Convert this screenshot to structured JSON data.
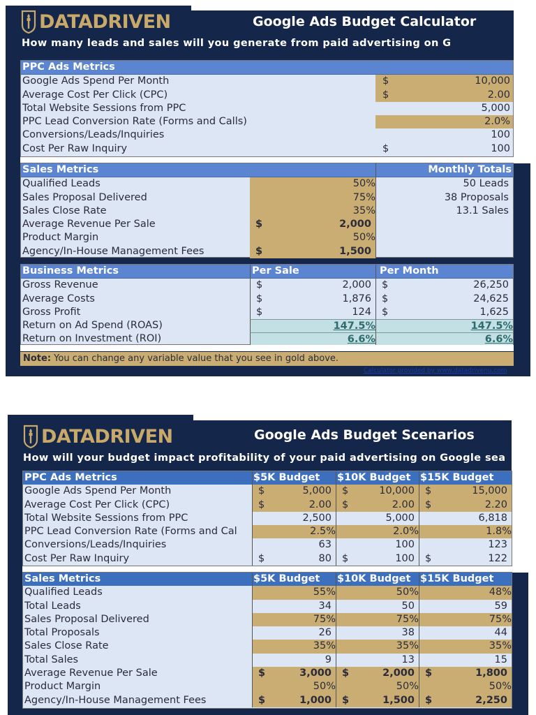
{
  "calculator": {
    "logo_text": "DATADRIVEN",
    "title": "Google Ads Budget Calculator",
    "subtitle": "How many leads and sales will you generate from paid advertising on G",
    "ppc": {
      "header": "PPC Ads Metrics",
      "rows": [
        {
          "label": "Google Ads Spend Per Month",
          "currency": "$",
          "value": "10,000",
          "editable": true
        },
        {
          "label": "Average Cost Per Click (CPC)",
          "currency": "$",
          "value": "2.00",
          "editable": true
        },
        {
          "label": "Total Website Sessions from PPC",
          "currency": "",
          "value": "5,000",
          "editable": false
        },
        {
          "label": "PPC Lead Conversion Rate (Forms and Calls)",
          "currency": "",
          "value": "2.0%",
          "editable": true
        },
        {
          "label": "Conversions/Leads/Inquiries",
          "currency": "",
          "value": "100",
          "editable": false
        },
        {
          "label": "Cost Per Raw Inquiry",
          "currency": "$",
          "value": "100",
          "editable": false
        }
      ]
    },
    "sales": {
      "header": "Sales Metrics",
      "totals_header": "Monthly Totals",
      "rows": [
        {
          "label": "Qualified Leads",
          "currency": "",
          "value": "50%",
          "total": "50 Leads"
        },
        {
          "label": "Sales Proposal Delivered",
          "currency": "",
          "value": "75%",
          "total": "38 Proposals"
        },
        {
          "label": "Sales Close Rate",
          "currency": "",
          "value": "35%",
          "total": "13.1 Sales"
        },
        {
          "label": "Average Revenue Per Sale",
          "currency": "$",
          "value": "2,000",
          "total": ""
        },
        {
          "label": "Product Margin",
          "currency": "",
          "value": "50%",
          "total": ""
        },
        {
          "label": "Agency/In-House Management Fees",
          "currency": "$",
          "value": "1,500",
          "total": ""
        }
      ]
    },
    "business": {
      "header": "Business Metrics",
      "col_per_sale": "Per Sale",
      "col_per_month": "Per Month",
      "rows": [
        {
          "label": "Gross Revenue",
          "sale_cur": "$",
          "sale": "2,000",
          "month_cur": "$",
          "month": "26,250"
        },
        {
          "label": "Average Costs",
          "sale_cur": "$",
          "sale": "1,876",
          "month_cur": "$",
          "month": "24,625"
        },
        {
          "label": "Gross Profit",
          "sale_cur": "$",
          "sale": "124",
          "month_cur": "$",
          "month": "1,625"
        },
        {
          "label": "Return on Ad Spend (ROAS)",
          "sale_cur": "",
          "sale": "147.5%",
          "month_cur": "",
          "month": "147.5%"
        },
        {
          "label": "Return on Investment (ROI)",
          "sale_cur": "",
          "sale": "6.6%",
          "month_cur": "",
          "month": "6.6%"
        }
      ]
    },
    "note_label": "Note:",
    "note_text": " You can change any variable value that you see in gold above.",
    "credit": "Calculator provided by www.datadrivenu.com"
  },
  "scenarios": {
    "logo_text": "DATADRIVEN",
    "title": "Google Ads Budget Scenarios",
    "subtitle": "How will your budget impact profitability of your paid advertising on Google sea",
    "columns": [
      "$5K Budget",
      "$10K Budget",
      "$15K Budget"
    ],
    "ppc": {
      "header": "PPC Ads Metrics",
      "rows": [
        {
          "label": "Google Ads Spend Per Month",
          "cur": "$",
          "gold": true,
          "bold": false,
          "values": [
            "5,000",
            "10,000",
            "15,000"
          ]
        },
        {
          "label": "Average Cost Per Click (CPC)",
          "cur": "$",
          "gold": true,
          "bold": false,
          "values": [
            "2.00",
            "2.00",
            "2.20"
          ]
        },
        {
          "label": "Total Website Sessions from PPC",
          "cur": "",
          "gold": false,
          "bold": false,
          "values": [
            "2,500",
            "5,000",
            "6,818"
          ]
        },
        {
          "label": "PPC Lead Conversion Rate (Forms and Cal",
          "cur": "",
          "gold": true,
          "bold": false,
          "values": [
            "2.5%",
            "2.0%",
            "1.8%"
          ]
        },
        {
          "label": "Conversions/Leads/Inquiries",
          "cur": "",
          "gold": false,
          "bold": false,
          "values": [
            "63",
            "100",
            "123"
          ]
        },
        {
          "label": "Cost Per Raw Inquiry",
          "cur": "$",
          "gold": false,
          "bold": false,
          "values": [
            "80",
            "100",
            "122"
          ]
        }
      ]
    },
    "sales": {
      "header": "Sales Metrics",
      "rows": [
        {
          "label": "Qualified Leads",
          "cur": "",
          "gold": true,
          "bold": false,
          "values": [
            "55%",
            "50%",
            "48%"
          ]
        },
        {
          "label": "Total Leads",
          "cur": "",
          "gold": false,
          "bold": false,
          "values": [
            "34",
            "50",
            "59"
          ]
        },
        {
          "label": "Sales Proposal Delivered",
          "cur": "",
          "gold": true,
          "bold": false,
          "values": [
            "75%",
            "75%",
            "75%"
          ]
        },
        {
          "label": "Total Proposals",
          "cur": "",
          "gold": false,
          "bold": false,
          "values": [
            "26",
            "38",
            "44"
          ]
        },
        {
          "label": "Sales Close Rate",
          "cur": "",
          "gold": true,
          "bold": false,
          "values": [
            "35%",
            "35%",
            "35%"
          ]
        },
        {
          "label": "Total Sales",
          "cur": "",
          "gold": false,
          "bold": false,
          "values": [
            "9",
            "13",
            "15"
          ]
        },
        {
          "label": "Average Revenue Per Sale",
          "cur": "$",
          "gold": true,
          "bold": true,
          "values": [
            "3,000",
            "2,000",
            "1,800"
          ]
        },
        {
          "label": "Product Margin",
          "cur": "",
          "gold": true,
          "bold": false,
          "values": [
            "50%",
            "50%",
            "50%"
          ]
        },
        {
          "label": "Agency/In-House Management Fees",
          "cur": "$",
          "gold": true,
          "bold": true,
          "values": [
            "1,000",
            "1,500",
            "2,250"
          ]
        }
      ]
    }
  },
  "colors": {
    "navy": "#14264a",
    "gold": "#c9ad72",
    "header_blue": "#5b85d0",
    "row_bg": "#dde6f5",
    "teal": "#c3e0e5"
  }
}
